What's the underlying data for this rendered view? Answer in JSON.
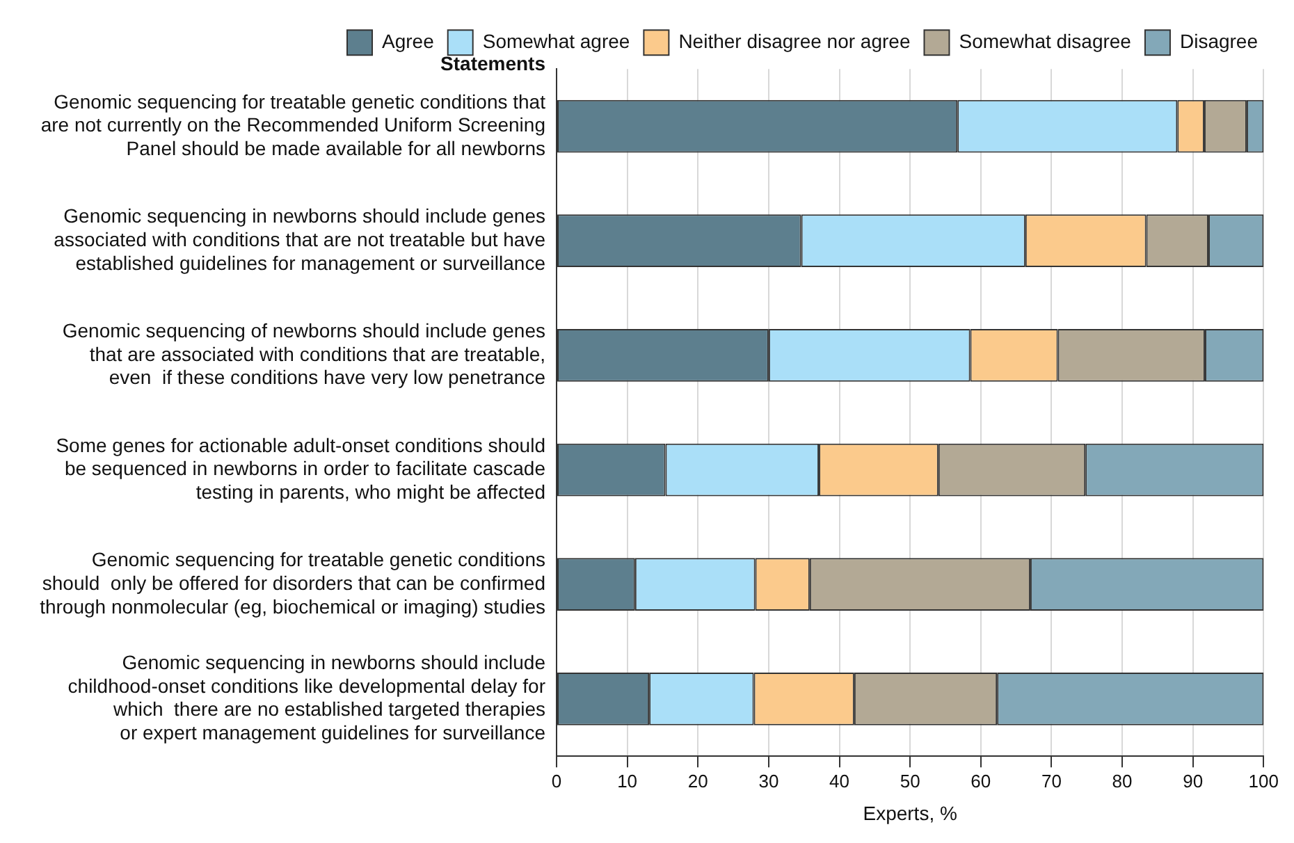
{
  "chart_data": {
    "type": "bar",
    "orientation": "horizontal",
    "stacked": true,
    "xlabel": "Experts, %",
    "ylabel": "Statements",
    "categories": [
      "Genomic sequencing for treatable genetic conditions that\nare not currently on the Recommended Uniform Screening\nPanel should be made available for all newborns",
      "Genomic sequencing in newborns should include genes\nassociated with conditions that are not treatable but have\nestablished guidelines for management or surveillance",
      "Genomic sequencing of newborns should include genes\nthat are associated with conditions that are treatable,\neven  if these conditions have very low penetrance",
      "Some genes for actionable adult-onset conditions should\nbe sequenced in newborns in order to facilitate cascade\ntesting in parents, who might be affected",
      "Genomic sequencing for treatable genetic conditions\nshould  only be offered for disorders that can be confirmed\nthrough nonmolecular (eg, biochemical or imaging) studies",
      "Genomic sequencing in newborns should include\nchildhood-onset conditions like developmental delay for\nwhich  there are no established targeted therapies\nor expert management guidelines for surveillance"
    ],
    "series": [
      {
        "name": "Agree",
        "color": "#5d7f8e",
        "values": [
          56.7,
          34.6,
          30.0,
          15.4,
          11.1,
          13.1
        ]
      },
      {
        "name": "Somewhat agree",
        "color": "#aadff8",
        "values": [
          31.1,
          31.7,
          28.5,
          21.7,
          17.0,
          14.8
        ]
      },
      {
        "name": "Neither disagree nor agree",
        "color": "#fbca8c",
        "values": [
          3.8,
          17.1,
          12.4,
          16.9,
          7.7,
          14.2
        ]
      },
      {
        "name": "Somewhat disagree",
        "color": "#b3a995",
        "values": [
          6.0,
          8.8,
          20.8,
          20.8,
          31.2,
          20.2
        ]
      },
      {
        "name": "Disagree",
        "color": "#83a8b8",
        "values": [
          2.4,
          7.8,
          8.3,
          25.2,
          33.0,
          37.7
        ]
      }
    ],
    "xlim": [
      0,
      100
    ],
    "xticks": [
      0,
      10,
      20,
      30,
      40,
      50,
      60,
      70,
      80,
      90,
      100
    ],
    "grid": "x",
    "legend": "top"
  }
}
